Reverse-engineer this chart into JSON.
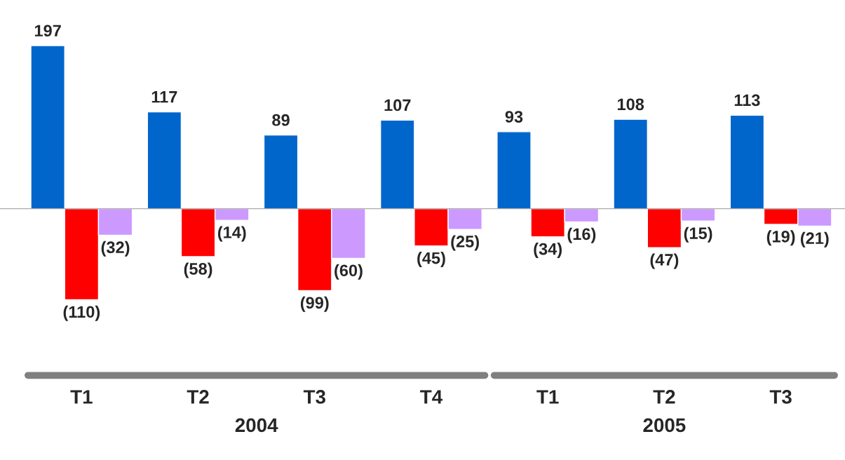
{
  "chart_data": {
    "type": "bar",
    "categories": [
      "T1",
      "T2",
      "T3",
      "T4",
      "T1",
      "T2",
      "T3"
    ],
    "series": [
      {
        "color": "#0066cc",
        "values": [
          197,
          117,
          89,
          107,
          93,
          108,
          113
        ],
        "value_labels": [
          "197",
          "117",
          "89",
          "107",
          "93",
          "108",
          "113"
        ]
      },
      {
        "color": "#ff0000",
        "values": [
          -110,
          -58,
          -99,
          -45,
          -34,
          -47,
          -19
        ],
        "value_labels": [
          "(110)",
          "(58)",
          "(99)",
          "(45)",
          "(34)",
          "(47)",
          "(19)"
        ]
      },
      {
        "color": "#cc99ff",
        "values": [
          -32,
          -14,
          -60,
          -25,
          -16,
          -15,
          -21
        ],
        "value_labels": [
          "(32)",
          "(14)",
          "(60)",
          "(25)",
          "(16)",
          "(15)",
          "(21)"
        ]
      }
    ],
    "annotations": [
      "2004",
      "2005"
    ],
    "grid": false,
    "legend": false
  }
}
